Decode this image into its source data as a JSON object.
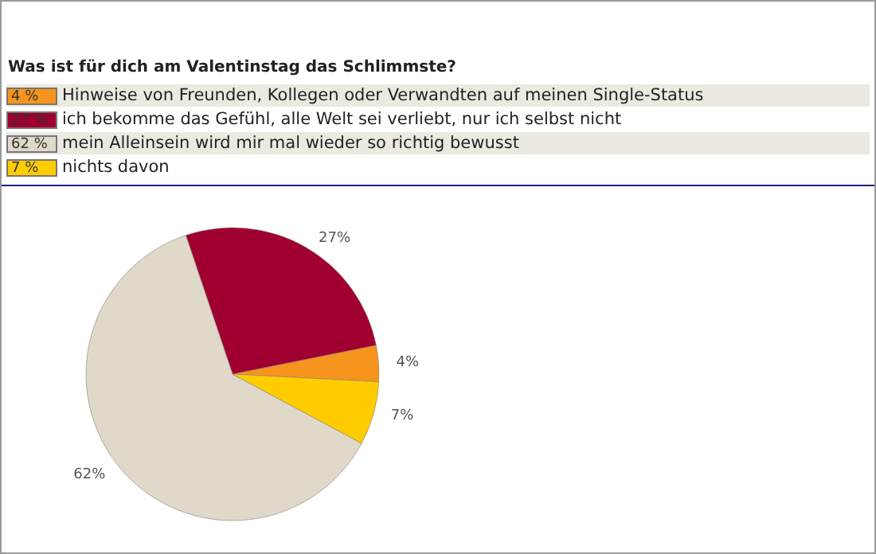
{
  "chart_data": {
    "type": "pie",
    "title": "Was ist für dich am Valentinstag das Schlimmste?",
    "categories": [
      "Hinweise von Freunden, Kollegen oder Verwandten auf meinen Single-Status",
      "ich bekomme das Gefühl, alle Welt sei verliebt, nur ich selbst nicht",
      "mein Alleinsein wird mir mal wieder so richtig bewusst",
      "nichts davon"
    ],
    "values": [
      4,
      27,
      62,
      7
    ],
    "colors": [
      "#f7941d",
      "#a00030",
      "#e0d8c8",
      "#ffcc00"
    ],
    "value_labels": [
      "4%",
      "27%",
      "62%",
      "7%"
    ],
    "annotations": [
      "4 %",
      "27 %",
      "62 %",
      "7 %"
    ],
    "legend": "top"
  }
}
